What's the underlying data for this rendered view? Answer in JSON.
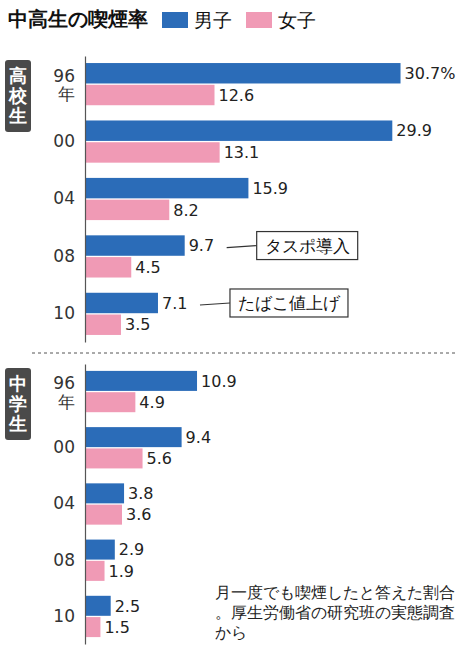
{
  "title": "中高生の喫煙率",
  "note": "月一度でも喫煙したと答えた割合。厚生労働省の研究班の実態調査から",
  "chart_data": [
    {
      "type": "bar",
      "title": "高校生",
      "orientation": "horizontal",
      "categories": [
        "96年",
        "00",
        "04",
        "08",
        "10"
      ],
      "series": [
        {
          "name": "男子",
          "color": "#2b6cb8",
          "values": [
            30.7,
            29.9,
            15.9,
            9.7,
            7.1
          ],
          "value_labels": [
            "30.7%",
            "29.9",
            "15.9",
            "9.7",
            "7.1"
          ]
        },
        {
          "name": "女子",
          "color": "#f09ab5",
          "values": [
            12.6,
            13.1,
            8.2,
            4.5,
            3.5
          ]
        }
      ],
      "xlim": [
        0,
        36
      ],
      "data_labels": true,
      "tick_labels": "y",
      "legend": "top",
      "annotations": [
        {
          "text": "タスポ導入",
          "category": "08"
        },
        {
          "text": "たばこ値上げ",
          "category": "10"
        }
      ]
    },
    {
      "type": "bar",
      "title": "中学生",
      "orientation": "horizontal",
      "categories": [
        "96年",
        "00",
        "04",
        "08",
        "10"
      ],
      "series": [
        {
          "name": "男子",
          "color": "#2b6cb8",
          "values": [
            10.9,
            9.4,
            3.8,
            2.9,
            2.5
          ]
        },
        {
          "name": "女子",
          "color": "#f09ab5",
          "values": [
            4.9,
            5.6,
            3.6,
            1.9,
            1.5
          ]
        }
      ],
      "xlim": [
        0,
        36
      ],
      "data_labels": true,
      "tick_labels": "y"
    }
  ]
}
